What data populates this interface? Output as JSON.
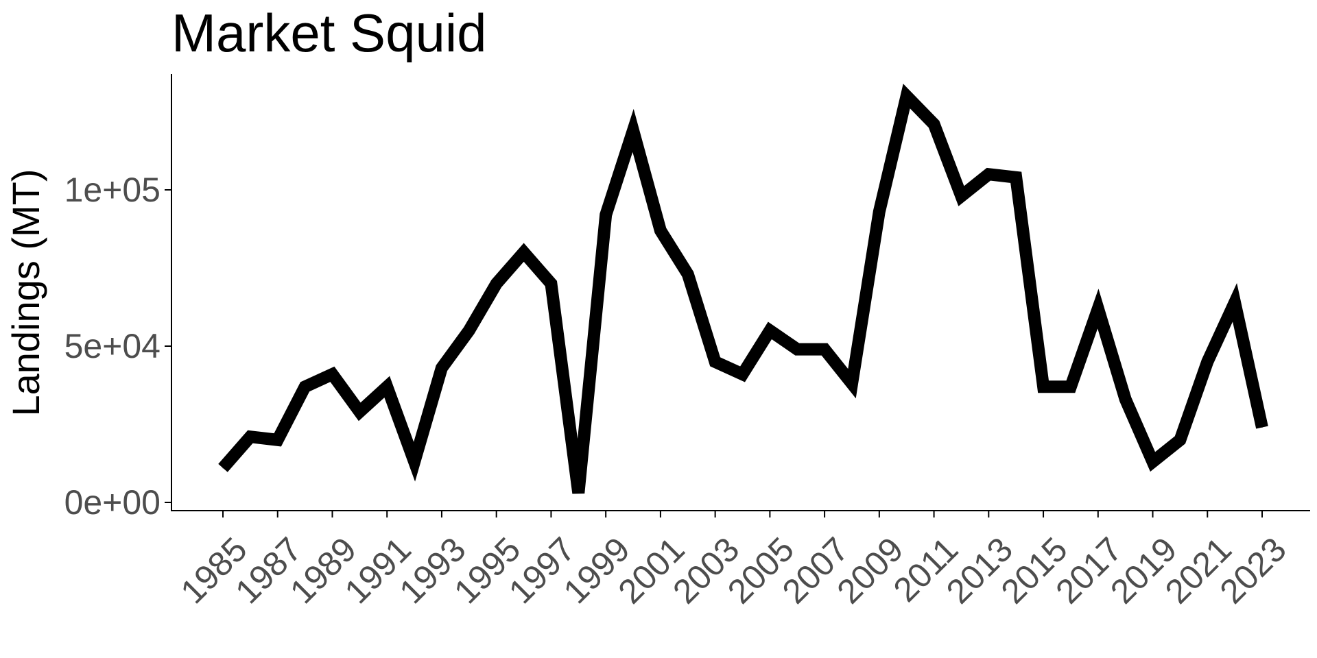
{
  "chart_data": {
    "type": "line",
    "title": "Market Squid",
    "xlabel": "",
    "ylabel": "Landings (MT)",
    "ylim": [
      0,
      130000
    ],
    "xlim": [
      1985,
      2023
    ],
    "y_ticks": [
      {
        "value": 0,
        "label": "0e+00"
      },
      {
        "value": 50000,
        "label": "5e+04"
      },
      {
        "value": 100000,
        "label": "1e+05"
      }
    ],
    "x_ticks": [
      1985,
      1987,
      1989,
      1991,
      1993,
      1995,
      1997,
      1999,
      2001,
      2003,
      2005,
      2007,
      2009,
      2011,
      2013,
      2015,
      2017,
      2019,
      2021,
      2023
    ],
    "x_tick_labels": [
      "1985",
      "1987",
      "1989",
      "1991",
      "1993",
      "1995",
      "1997",
      "1999",
      "2001",
      "2003",
      "2005",
      "2007",
      "2009",
      "2011",
      "2013",
      "2015",
      "2017",
      "2019",
      "2021",
      "2023"
    ],
    "grid": false,
    "series": [
      {
        "color": "#000000",
        "x": [
          1985,
          1986,
          1987,
          1988,
          1989,
          1990,
          1991,
          1992,
          1993,
          1994,
          1995,
          1996,
          1997,
          1998,
          1999,
          2000,
          2001,
          2002,
          2003,
          2004,
          2005,
          2006,
          2007,
          2008,
          2009,
          2010,
          2011,
          2012,
          2013,
          2014,
          2015,
          2016,
          2017,
          2018,
          2019,
          2020,
          2021,
          2022,
          2023
        ],
        "values": [
          11000,
          21000,
          20000,
          37000,
          41000,
          29000,
          37000,
          13000,
          43000,
          55000,
          70000,
          80000,
          70000,
          3000,
          92000,
          119000,
          87000,
          73000,
          45000,
          41000,
          55000,
          49000,
          49000,
          38000,
          93000,
          130000,
          121000,
          98000,
          105000,
          104000,
          37000,
          37000,
          62000,
          33000,
          13000,
          20000,
          45000,
          64000,
          24000
        ]
      }
    ]
  }
}
